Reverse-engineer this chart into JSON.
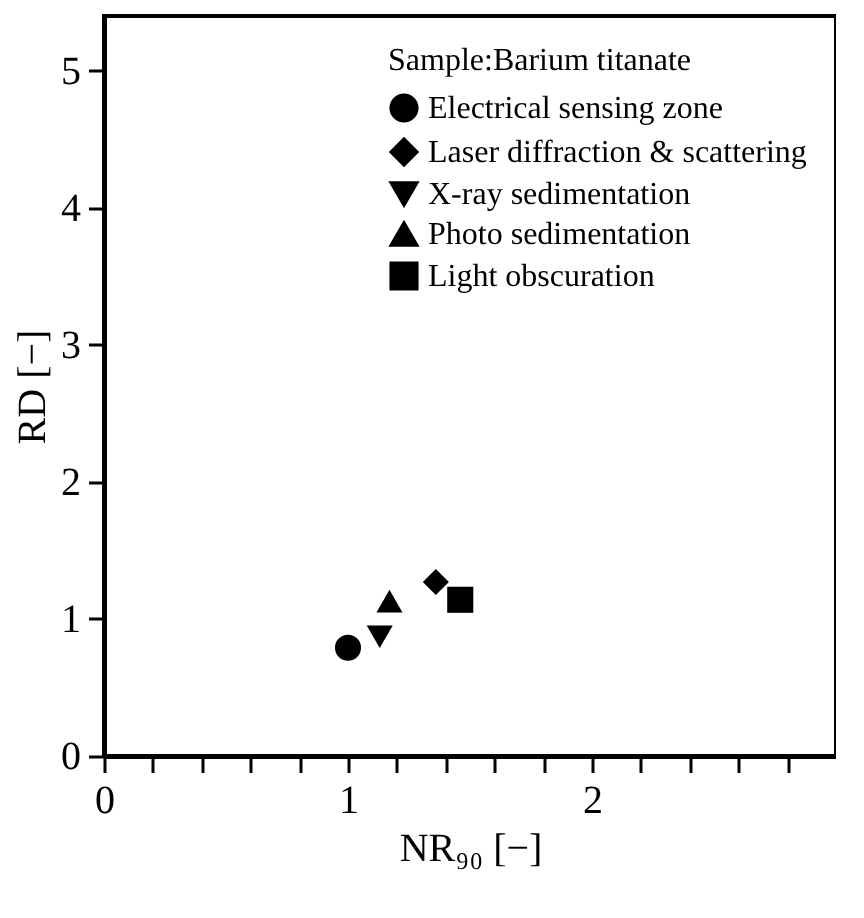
{
  "chart_data": {
    "type": "scatter",
    "xlabel": "NR₉₀ [−]",
    "ylabel": "RD [−]",
    "legend_title": "Sample:Barium titanate",
    "legend": "top right",
    "grid": false,
    "xlim": [
      0,
      3
    ],
    "xticks": [
      0,
      {
        "value": 0.2,
        "label": null
      },
      {
        "value": 0.4,
        "label": null
      },
      {
        "value": 0.6,
        "label": null
      },
      {
        "value": 0.8,
        "label": null
      },
      1,
      {
        "value": 1.2,
        "label": null
      },
      {
        "value": 1.4,
        "label": null
      },
      {
        "value": 1.6,
        "label": null
      },
      {
        "value": 1.8,
        "label": null
      },
      2,
      {
        "value": 2.2,
        "label": null
      },
      {
        "value": 2.4,
        "label": null
      },
      {
        "value": 2.6,
        "label": null
      },
      {
        "value": 2.8,
        "label": null
      }
    ],
    "ylim": [
      0,
      5.4
    ],
    "yticks": [
      0,
      1,
      2,
      3,
      4,
      5
    ],
    "series": [
      {
        "name": "Electrical sensing zone",
        "color": "#000000",
        "marker": "circle",
        "x": [
          1.0
        ],
        "values": [
          0.79
        ]
      },
      {
        "name": "Laser diffraction & scattering",
        "color": "#000000",
        "marker": "diamond",
        "x": [
          1.36
        ],
        "values": [
          1.27
        ]
      },
      {
        "name": "X-ray sedimentation",
        "color": "#000000",
        "marker": "triangle-down",
        "x": [
          1.13
        ],
        "values": [
          0.87
        ]
      },
      {
        "name": "Photo sedimentation",
        "color": "#000000",
        "marker": "triangle",
        "x": [
          1.17
        ],
        "values": [
          1.13
        ]
      },
      {
        "name": "Light obscuration",
        "color": "#000000",
        "marker": "square",
        "x": [
          1.46
        ],
        "values": [
          1.14
        ]
      }
    ]
  }
}
